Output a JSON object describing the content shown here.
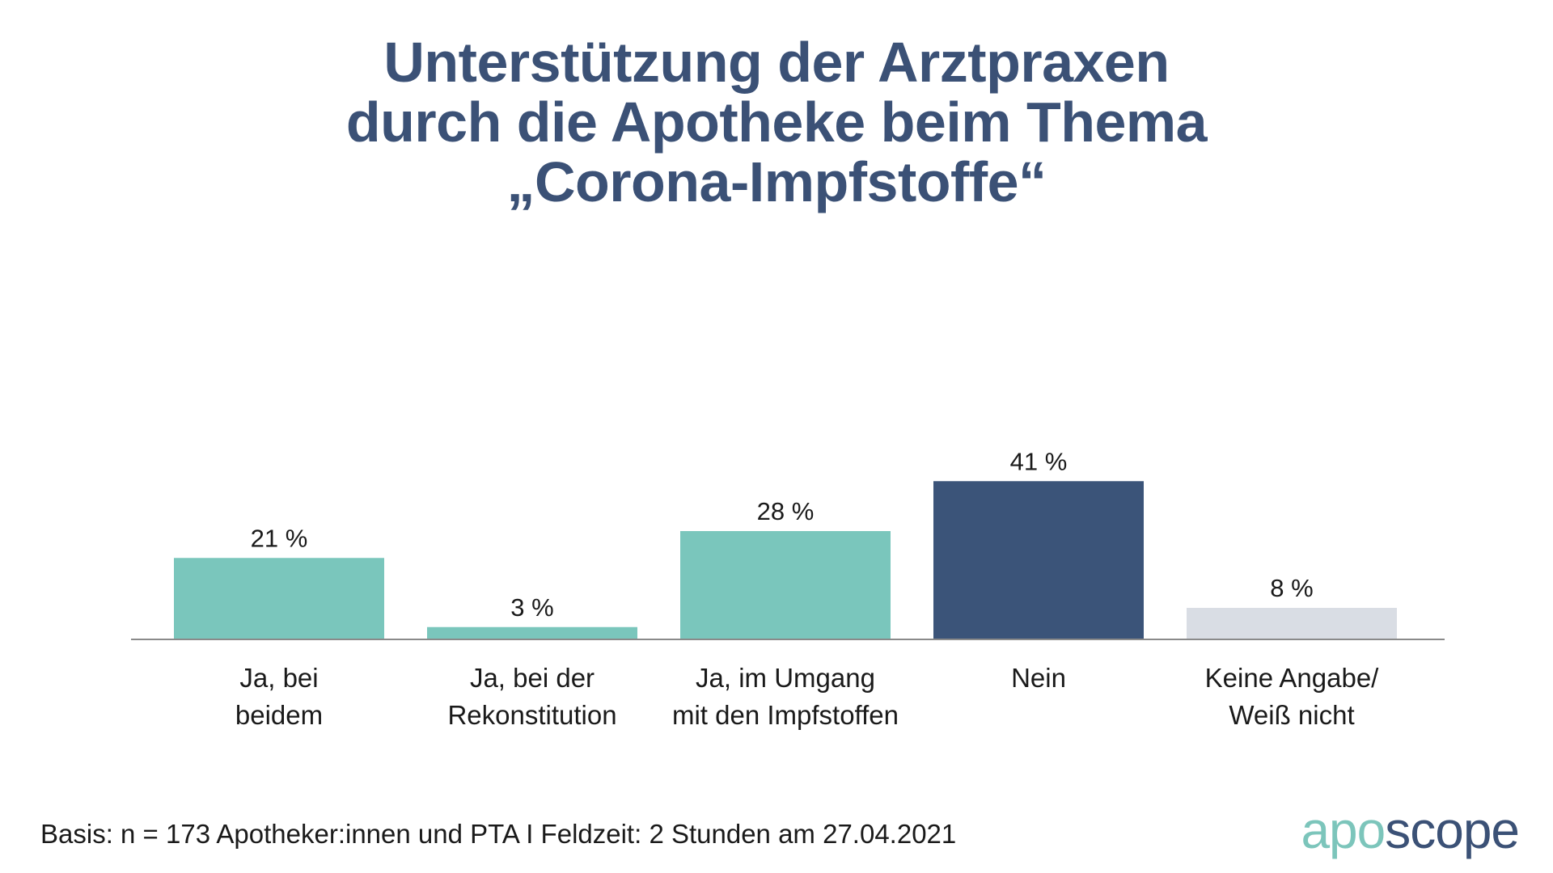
{
  "chart_data": {
    "type": "bar",
    "title_lines": [
      "Unterstützung der Arztpraxen",
      "durch die Apotheke beim Thema",
      "„Corona-Impfstoffe“"
    ],
    "categories": [
      [
        "Ja, bei",
        "beidem"
      ],
      [
        "Ja, bei der",
        "Rekonstitution"
      ],
      [
        "Ja, im Umgang",
        "mit den Impfstoffen"
      ],
      [
        "Nein"
      ],
      [
        "Keine Angabe/",
        "Weiß nicht"
      ]
    ],
    "values": [
      21,
      3,
      28,
      41,
      8
    ],
    "value_labels": [
      "21 %",
      "3 %",
      "28 %",
      "41 %",
      "8 %"
    ],
    "colors": [
      "#7ac6bc",
      "#7ac6bc",
      "#7ac6bc",
      "#3b5479",
      "#d9dde4"
    ],
    "xlabel": "",
    "ylabel": "",
    "ylim": [
      0,
      100
    ],
    "grid": false,
    "legend": "none"
  },
  "footnote": "Basis: n = 173 Apotheker:innen und PTA I Feldzeit: 2 Stunden am 27.04.2021",
  "logo": {
    "part1": "apo",
    "part2": "scope",
    "color1": "#7cc5bb",
    "color2": "#3b5176"
  }
}
